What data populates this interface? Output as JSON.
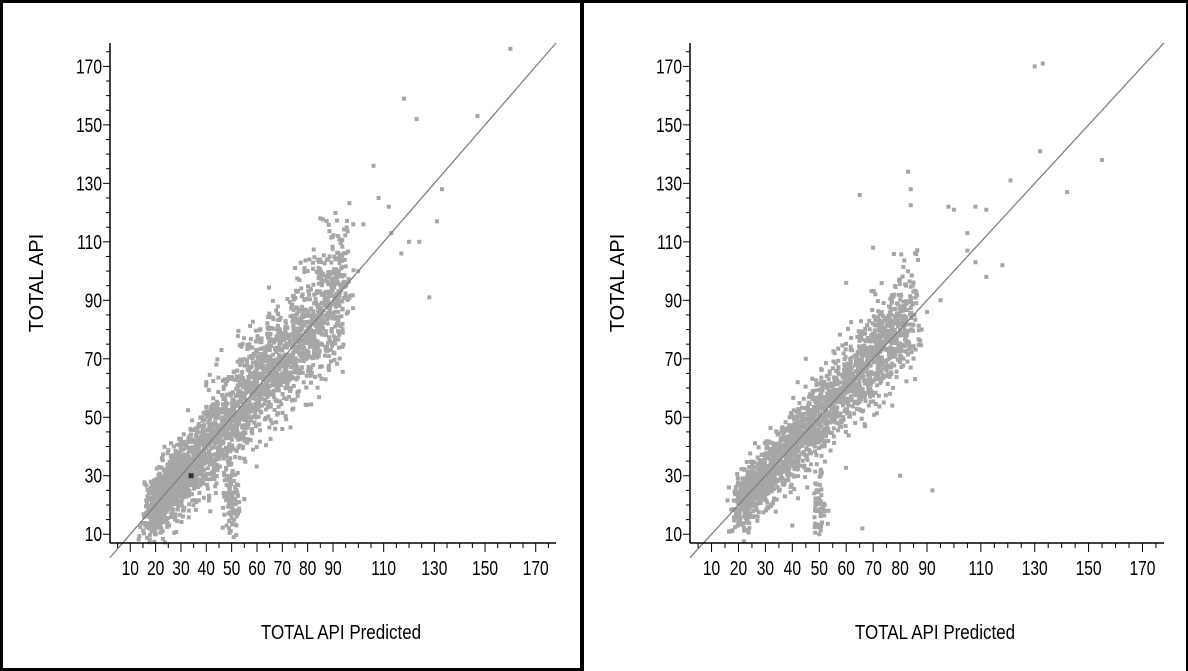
{
  "colors": {
    "point": "#a6a6a6",
    "line": "#808080",
    "axis": "#000000",
    "highlight": "#333333"
  },
  "chart_data": [
    {
      "type": "scatter",
      "title": "",
      "xlabel": "TOTAL API Predicted",
      "ylabel": "TOTAL API",
      "xlim": [
        2,
        178
      ],
      "ylim": [
        7,
        178
      ],
      "x_ticks": [
        10,
        20,
        30,
        40,
        50,
        60,
        70,
        80,
        90,
        110,
        130,
        150,
        170
      ],
      "y_ticks": [
        10,
        30,
        50,
        70,
        90,
        110,
        130,
        150,
        170
      ],
      "reference_line": {
        "from": [
          2,
          2
        ],
        "to": [
          178,
          178
        ]
      },
      "outliers": [
        [
          160,
          176
        ],
        [
          147,
          153
        ],
        [
          118,
          159
        ],
        [
          123,
          152
        ],
        [
          106,
          136
        ],
        [
          108,
          125
        ],
        [
          112,
          122
        ],
        [
          100,
          100
        ],
        [
          120,
          110
        ],
        [
          124,
          110
        ],
        [
          131,
          117
        ],
        [
          133,
          128
        ],
        [
          128,
          91
        ],
        [
          95,
          95
        ],
        [
          88,
          104
        ],
        [
          92,
          112
        ],
        [
          85,
          118
        ],
        [
          80,
          100
        ],
        [
          78,
          92
        ],
        [
          75,
          101
        ],
        [
          70,
          65
        ],
        [
          82,
          82
        ],
        [
          98,
          116
        ],
        [
          102,
          116
        ],
        [
          113,
          113
        ],
        [
          117,
          106
        ],
        [
          88,
          84
        ],
        [
          65,
          77
        ],
        [
          60,
          62
        ],
        [
          62,
          54
        ],
        [
          57,
          75
        ],
        [
          40,
          62
        ],
        [
          44,
          68
        ],
        [
          66,
          48
        ],
        [
          70,
          46
        ],
        [
          55,
          22
        ],
        [
          48,
          13
        ],
        [
          51,
          15
        ],
        [
          50,
          20
        ],
        [
          49,
          24
        ],
        [
          52,
          27
        ],
        [
          50,
          30
        ],
        [
          47,
          31
        ],
        [
          53,
          21
        ],
        [
          20,
          18
        ],
        [
          22,
          20
        ],
        [
          25,
          23
        ],
        [
          46,
          73
        ],
        [
          38,
          50
        ],
        [
          34,
          44
        ]
      ],
      "cloud": {
        "x_range": [
          18,
          95
        ],
        "spread": 6.5,
        "count": 2600
      },
      "cluster": {
        "center": [
          50,
          22
        ],
        "spread_x": 1.6,
        "spread_y": 7,
        "count": 90
      },
      "highlight_point": [
        34,
        30
      ]
    },
    {
      "type": "scatter",
      "title": "",
      "xlabel": "TOTAL API Predicted",
      "ylabel": "TOTAL API",
      "xlim": [
        2,
        178
      ],
      "ylim": [
        7,
        178
      ],
      "x_ticks": [
        10,
        20,
        30,
        40,
        50,
        60,
        70,
        80,
        90,
        110,
        130,
        150,
        170
      ],
      "y_ticks": [
        10,
        30,
        50,
        70,
        90,
        110,
        130,
        150,
        170
      ],
      "reference_line": {
        "from": [
          2,
          2
        ],
        "to": [
          178,
          178
        ]
      },
      "outliers": [
        [
          130,
          170
        ],
        [
          133,
          171
        ],
        [
          132,
          141
        ],
        [
          142,
          127
        ],
        [
          155,
          138
        ],
        [
          121,
          131
        ],
        [
          112,
          121
        ],
        [
          108,
          122
        ],
        [
          100,
          121
        ],
        [
          105,
          107
        ],
        [
          108,
          103
        ],
        [
          112,
          98
        ],
        [
          83,
          134
        ],
        [
          84,
          128
        ],
        [
          65,
          126
        ],
        [
          60,
          96
        ],
        [
          70,
          108
        ],
        [
          92,
          25
        ],
        [
          80,
          30
        ],
        [
          66,
          12
        ],
        [
          90,
          86
        ],
        [
          95,
          90
        ],
        [
          88,
          80
        ],
        [
          65,
          78
        ],
        [
          72,
          77
        ],
        [
          68,
          62
        ],
        [
          63,
          55
        ],
        [
          45,
          70
        ],
        [
          42,
          62
        ],
        [
          51,
          14
        ],
        [
          50,
          10
        ],
        [
          52,
          18
        ],
        [
          50,
          22
        ],
        [
          49,
          25
        ],
        [
          21,
          19
        ],
        [
          20,
          18
        ],
        [
          24,
          21
        ],
        [
          40,
          13
        ],
        [
          98,
          122
        ],
        [
          105,
          113
        ],
        [
          118,
          102
        ]
      ],
      "cloud": {
        "x_range": [
          20,
          85
        ],
        "spread": 5.5,
        "count": 2200
      },
      "cluster": {
        "center": [
          50,
          20
        ],
        "spread_x": 1.4,
        "spread_y": 6,
        "count": 50
      },
      "highlight_point": null
    }
  ]
}
